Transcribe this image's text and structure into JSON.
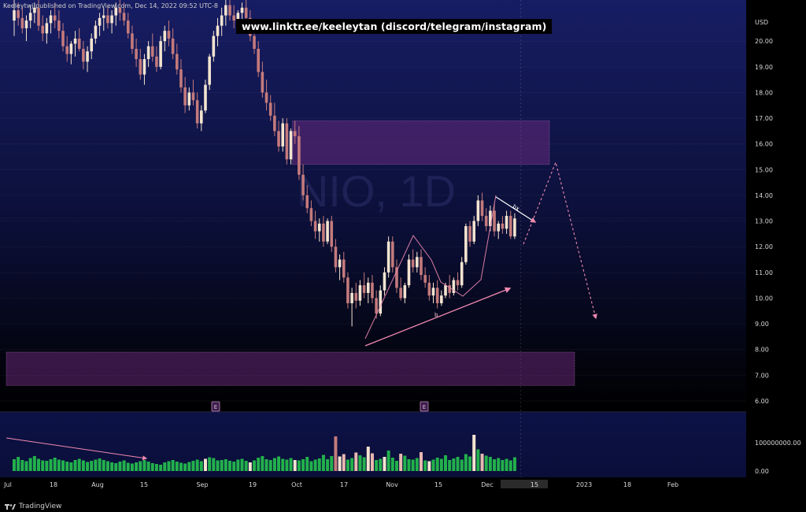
{
  "header": {
    "published": "Keeleytwj published on TradingView.com, Dec 14, 2022 09:52 UTC-8",
    "banner": "www.linktr.ee/keeleytan (discord/telegram/instagram)"
  },
  "footer": {
    "brand": "TradingView",
    "logo_icon": "tradingview-logo-icon"
  },
  "colors": {
    "bg_top": "#141a5c",
    "bg_bottom": "#000000",
    "up_candle": "#f4e4d0",
    "down_candle": "#c47a7c",
    "volume_green": "#22b14c",
    "zone_fill": "#7b2e8a",
    "annotation": "#f08ab0",
    "axis_text": "#d8d8d8"
  },
  "chart_data": {
    "type": "candlestick",
    "watermark": "NIO, 1D",
    "currency": "USD",
    "price_ticks": [
      "6.00",
      "7.00",
      "8.00",
      "9.00",
      "10.00",
      "11.00",
      "12.00",
      "13.00",
      "14.00",
      "15.00",
      "16.00",
      "17.00",
      "18.00",
      "19.00",
      "20.00"
    ],
    "ylim": [
      5.6,
      21.6
    ],
    "volume_ticks": [
      "0.00",
      "100000000.00"
    ],
    "time_labels": [
      "Jul",
      "18",
      "Aug",
      "15",
      "Sep",
      "19",
      "Oct",
      "17",
      "Nov",
      "15",
      "Dec",
      "15",
      "2023",
      "18",
      "Feb"
    ],
    "current_date_label": "15",
    "earnings_markers": [
      "E",
      "E"
    ],
    "zones": [
      {
        "name": "resistance",
        "from": 15.2,
        "to": 16.9
      },
      {
        "name": "support",
        "from": 6.6,
        "to": 7.9
      }
    ],
    "annotations": {
      "b_label": "b",
      "bx_label": "bx",
      "projected_path": [
        {
          "date": "Dec 13",
          "price": 12.2
        },
        {
          "date": "Dec 21",
          "price": 15.4
        },
        {
          "date": "Jan 9",
          "price": 9.2
        }
      ]
    },
    "candles": [
      {
        "o": 20.8,
        "h": 21.6,
        "l": 20.2,
        "c": 21.2
      },
      {
        "o": 21.2,
        "h": 21.5,
        "l": 20.6,
        "c": 20.9
      },
      {
        "o": 20.9,
        "h": 21.3,
        "l": 20.3,
        "c": 20.5
      },
      {
        "o": 20.5,
        "h": 21.0,
        "l": 20.0,
        "c": 20.8
      },
      {
        "o": 20.8,
        "h": 21.4,
        "l": 20.5,
        "c": 21.1
      },
      {
        "o": 21.1,
        "h": 21.5,
        "l": 20.7,
        "c": 21.3
      },
      {
        "o": 21.3,
        "h": 21.6,
        "l": 20.4,
        "c": 20.6
      },
      {
        "o": 20.6,
        "h": 21.0,
        "l": 20.0,
        "c": 20.3
      },
      {
        "o": 20.3,
        "h": 20.9,
        "l": 19.9,
        "c": 20.7
      },
      {
        "o": 20.7,
        "h": 21.2,
        "l": 20.3,
        "c": 21.0
      },
      {
        "o": 21.0,
        "h": 21.5,
        "l": 20.5,
        "c": 20.8
      },
      {
        "o": 20.8,
        "h": 21.2,
        "l": 20.1,
        "c": 20.4
      },
      {
        "o": 20.4,
        "h": 20.7,
        "l": 19.6,
        "c": 19.8
      },
      {
        "o": 19.8,
        "h": 20.2,
        "l": 19.2,
        "c": 19.5
      },
      {
        "o": 19.5,
        "h": 20.0,
        "l": 19.1,
        "c": 19.9
      },
      {
        "o": 19.9,
        "h": 20.4,
        "l": 19.4,
        "c": 20.1
      },
      {
        "o": 20.1,
        "h": 20.5,
        "l": 19.6,
        "c": 19.7
      },
      {
        "o": 19.7,
        "h": 20.0,
        "l": 18.9,
        "c": 19.2
      },
      {
        "o": 19.2,
        "h": 19.8,
        "l": 18.8,
        "c": 19.6
      },
      {
        "o": 19.6,
        "h": 20.3,
        "l": 19.3,
        "c": 20.1
      },
      {
        "o": 20.1,
        "h": 20.8,
        "l": 19.9,
        "c": 20.6
      },
      {
        "o": 20.6,
        "h": 21.1,
        "l": 20.2,
        "c": 20.9
      },
      {
        "o": 20.9,
        "h": 21.3,
        "l": 20.4,
        "c": 21.0
      },
      {
        "o": 21.0,
        "h": 21.4,
        "l": 20.5,
        "c": 20.7
      },
      {
        "o": 20.7,
        "h": 21.2,
        "l": 20.3,
        "c": 21.0
      },
      {
        "o": 21.0,
        "h": 21.5,
        "l": 20.6,
        "c": 21.3
      },
      {
        "o": 21.3,
        "h": 21.6,
        "l": 20.8,
        "c": 21.1
      },
      {
        "o": 21.1,
        "h": 21.5,
        "l": 20.6,
        "c": 20.8
      },
      {
        "o": 20.8,
        "h": 21.1,
        "l": 20.1,
        "c": 20.3
      },
      {
        "o": 20.3,
        "h": 20.6,
        "l": 19.5,
        "c": 19.7
      },
      {
        "o": 19.7,
        "h": 20.1,
        "l": 19.0,
        "c": 19.3
      },
      {
        "o": 19.3,
        "h": 19.7,
        "l": 18.5,
        "c": 18.7
      },
      {
        "o": 18.7,
        "h": 19.5,
        "l": 18.3,
        "c": 19.3
      },
      {
        "o": 19.3,
        "h": 20.0,
        "l": 19.0,
        "c": 19.8
      },
      {
        "o": 19.8,
        "h": 20.3,
        "l": 19.2,
        "c": 19.4
      },
      {
        "o": 19.4,
        "h": 19.8,
        "l": 18.8,
        "c": 19.0
      },
      {
        "o": 19.0,
        "h": 20.2,
        "l": 18.9,
        "c": 20.0
      },
      {
        "o": 20.0,
        "h": 20.6,
        "l": 19.6,
        "c": 20.4
      },
      {
        "o": 20.4,
        "h": 20.8,
        "l": 19.8,
        "c": 20.1
      },
      {
        "o": 20.1,
        "h": 20.5,
        "l": 19.3,
        "c": 19.5
      },
      {
        "o": 19.5,
        "h": 19.9,
        "l": 18.7,
        "c": 18.9
      },
      {
        "o": 18.9,
        "h": 19.3,
        "l": 18.0,
        "c": 18.2
      },
      {
        "o": 18.2,
        "h": 18.6,
        "l": 17.2,
        "c": 17.5
      },
      {
        "o": 17.5,
        "h": 18.2,
        "l": 17.3,
        "c": 18.0
      },
      {
        "o": 18.0,
        "h": 18.5,
        "l": 17.5,
        "c": 17.7
      },
      {
        "o": 17.7,
        "h": 18.0,
        "l": 16.6,
        "c": 16.8
      },
      {
        "o": 16.8,
        "h": 17.5,
        "l": 16.5,
        "c": 17.3
      },
      {
        "o": 17.3,
        "h": 18.5,
        "l": 17.2,
        "c": 18.3
      },
      {
        "o": 18.3,
        "h": 19.5,
        "l": 18.1,
        "c": 19.4
      },
      {
        "o": 19.4,
        "h": 20.4,
        "l": 19.2,
        "c": 20.2
      },
      {
        "o": 20.2,
        "h": 20.9,
        "l": 19.8,
        "c": 20.6
      },
      {
        "o": 20.6,
        "h": 21.3,
        "l": 20.2,
        "c": 21.0
      },
      {
        "o": 21.0,
        "h": 21.6,
        "l": 20.6,
        "c": 21.4
      },
      {
        "o": 21.4,
        "h": 21.6,
        "l": 20.8,
        "c": 21.0
      },
      {
        "o": 21.0,
        "h": 21.4,
        "l": 20.5,
        "c": 20.8
      },
      {
        "o": 20.8,
        "h": 21.2,
        "l": 20.4,
        "c": 21.1
      },
      {
        "o": 21.1,
        "h": 21.5,
        "l": 20.8,
        "c": 21.3
      },
      {
        "o": 21.3,
        "h": 21.6,
        "l": 20.6,
        "c": 20.9
      },
      {
        "o": 20.9,
        "h": 21.2,
        "l": 20.0,
        "c": 20.2
      },
      {
        "o": 20.2,
        "h": 20.6,
        "l": 19.5,
        "c": 19.7
      },
      {
        "o": 19.7,
        "h": 20.0,
        "l": 18.6,
        "c": 18.8
      },
      {
        "o": 18.8,
        "h": 19.2,
        "l": 17.8,
        "c": 18.0
      },
      {
        "o": 18.0,
        "h": 18.5,
        "l": 17.3,
        "c": 17.6
      },
      {
        "o": 17.6,
        "h": 17.9,
        "l": 16.9,
        "c": 17.1
      },
      {
        "o": 17.1,
        "h": 17.6,
        "l": 16.3,
        "c": 16.5
      },
      {
        "o": 16.5,
        "h": 16.9,
        "l": 15.7,
        "c": 15.9
      },
      {
        "o": 15.9,
        "h": 17.0,
        "l": 15.7,
        "c": 16.8
      },
      {
        "o": 16.8,
        "h": 17.0,
        "l": 15.2,
        "c": 15.4
      },
      {
        "o": 15.4,
        "h": 16.6,
        "l": 15.2,
        "c": 16.5
      },
      {
        "o": 16.5,
        "h": 16.9,
        "l": 16.0,
        "c": 16.3
      },
      {
        "o": 16.3,
        "h": 16.7,
        "l": 14.6,
        "c": 14.8
      },
      {
        "o": 14.8,
        "h": 15.2,
        "l": 13.8,
        "c": 14.0
      },
      {
        "o": 14.0,
        "h": 14.4,
        "l": 13.3,
        "c": 13.5
      },
      {
        "o": 13.5,
        "h": 13.8,
        "l": 12.8,
        "c": 13.0
      },
      {
        "o": 13.0,
        "h": 13.4,
        "l": 12.3,
        "c": 12.6
      },
      {
        "o": 12.6,
        "h": 13.1,
        "l": 12.2,
        "c": 12.9
      },
      {
        "o": 12.9,
        "h": 13.2,
        "l": 12.0,
        "c": 12.2
      },
      {
        "o": 12.2,
        "h": 13.1,
        "l": 12.1,
        "c": 13.0
      },
      {
        "o": 13.0,
        "h": 13.2,
        "l": 11.8,
        "c": 12.0
      },
      {
        "o": 12.0,
        "h": 12.3,
        "l": 11.0,
        "c": 11.2
      },
      {
        "o": 11.2,
        "h": 11.7,
        "l": 10.7,
        "c": 11.5
      },
      {
        "o": 11.5,
        "h": 11.8,
        "l": 10.6,
        "c": 10.8
      },
      {
        "o": 10.8,
        "h": 11.0,
        "l": 9.6,
        "c": 9.8
      },
      {
        "o": 9.8,
        "h": 10.4,
        "l": 8.9,
        "c": 10.2
      },
      {
        "o": 10.2,
        "h": 10.6,
        "l": 9.6,
        "c": 9.9
      },
      {
        "o": 9.9,
        "h": 10.7,
        "l": 9.7,
        "c": 10.5
      },
      {
        "o": 10.5,
        "h": 11.0,
        "l": 10.0,
        "c": 10.2
      },
      {
        "o": 10.2,
        "h": 10.8,
        "l": 9.8,
        "c": 10.6
      },
      {
        "o": 10.6,
        "h": 10.9,
        "l": 9.8,
        "c": 10.0
      },
      {
        "o": 10.0,
        "h": 10.3,
        "l": 9.2,
        "c": 9.4
      },
      {
        "o": 9.4,
        "h": 10.5,
        "l": 9.3,
        "c": 10.3
      },
      {
        "o": 10.3,
        "h": 11.2,
        "l": 10.1,
        "c": 11.0
      },
      {
        "o": 11.0,
        "h": 12.4,
        "l": 10.8,
        "c": 12.2
      },
      {
        "o": 12.2,
        "h": 12.4,
        "l": 11.0,
        "c": 11.2
      },
      {
        "o": 11.2,
        "h": 11.5,
        "l": 10.2,
        "c": 10.4
      },
      {
        "o": 10.4,
        "h": 10.8,
        "l": 9.9,
        "c": 10.0
      },
      {
        "o": 10.0,
        "h": 10.6,
        "l": 9.8,
        "c": 10.5
      },
      {
        "o": 10.5,
        "h": 11.7,
        "l": 10.4,
        "c": 11.5
      },
      {
        "o": 11.5,
        "h": 11.9,
        "l": 11.0,
        "c": 11.2
      },
      {
        "o": 11.2,
        "h": 11.8,
        "l": 11.0,
        "c": 11.6
      },
      {
        "o": 11.6,
        "h": 11.9,
        "l": 10.7,
        "c": 10.9
      },
      {
        "o": 10.9,
        "h": 11.2,
        "l": 10.4,
        "c": 10.6
      },
      {
        "o": 10.6,
        "h": 10.9,
        "l": 9.9,
        "c": 10.1
      },
      {
        "o": 10.1,
        "h": 10.6,
        "l": 9.8,
        "c": 10.4
      },
      {
        "o": 10.4,
        "h": 10.7,
        "l": 9.6,
        "c": 9.8
      },
      {
        "o": 9.8,
        "h": 10.3,
        "l": 9.7,
        "c": 10.1
      },
      {
        "o": 10.1,
        "h": 10.6,
        "l": 10.0,
        "c": 10.5
      },
      {
        "o": 10.5,
        "h": 10.9,
        "l": 10.0,
        "c": 10.2
      },
      {
        "o": 10.2,
        "h": 10.8,
        "l": 10.1,
        "c": 10.7
      },
      {
        "o": 10.7,
        "h": 11.0,
        "l": 10.3,
        "c": 10.5
      },
      {
        "o": 10.5,
        "h": 11.6,
        "l": 10.4,
        "c": 11.4
      },
      {
        "o": 11.4,
        "h": 12.9,
        "l": 11.3,
        "c": 12.8
      },
      {
        "o": 12.8,
        "h": 13.0,
        "l": 12.0,
        "c": 12.2
      },
      {
        "o": 12.2,
        "h": 13.2,
        "l": 12.1,
        "c": 13.0
      },
      {
        "o": 13.0,
        "h": 14.0,
        "l": 12.8,
        "c": 13.8
      },
      {
        "o": 13.8,
        "h": 14.1,
        "l": 13.0,
        "c": 13.2
      },
      {
        "o": 13.2,
        "h": 13.5,
        "l": 12.6,
        "c": 12.8
      },
      {
        "o": 12.8,
        "h": 13.6,
        "l": 12.6,
        "c": 13.4
      },
      {
        "o": 13.4,
        "h": 13.7,
        "l": 12.4,
        "c": 12.6
      },
      {
        "o": 12.6,
        "h": 13.0,
        "l": 12.3,
        "c": 12.9
      },
      {
        "o": 12.9,
        "h": 13.2,
        "l": 12.5,
        "c": 12.7
      },
      {
        "o": 12.7,
        "h": 13.4,
        "l": 12.5,
        "c": 13.2
      },
      {
        "o": 13.2,
        "h": 13.4,
        "l": 12.3,
        "c": 12.4
      },
      {
        "o": 12.4,
        "h": 13.3,
        "l": 12.3,
        "c": 13.1
      }
    ],
    "volume": [
      30,
      36,
      28,
      25,
      33,
      38,
      31,
      27,
      26,
      30,
      34,
      29,
      27,
      24,
      22,
      28,
      31,
      27,
      23,
      26,
      29,
      32,
      28,
      25,
      22,
      20,
      24,
      27,
      21,
      19,
      22,
      25,
      28,
      24,
      20,
      18,
      16,
      22,
      25,
      28,
      24,
      21,
      19,
      23,
      26,
      29,
      25,
      31,
      35,
      33,
      27,
      28,
      30,
      26,
      24,
      29,
      31,
      26,
      22,
      27,
      34,
      38,
      30,
      28,
      33,
      37,
      31,
      29,
      33,
      28,
      27,
      30,
      36,
      25,
      29,
      32,
      41,
      30,
      38,
      88,
      37,
      43,
      29,
      33,
      47,
      40,
      35,
      62,
      45,
      28,
      31,
      36,
      52,
      34,
      26,
      44,
      39,
      30,
      29,
      33,
      48,
      27,
      25,
      29,
      34,
      31,
      40,
      28,
      32,
      36,
      29,
      43,
      37,
      92,
      55,
      44,
      39,
      36,
      30,
      33,
      28,
      31,
      27,
      35
    ]
  }
}
